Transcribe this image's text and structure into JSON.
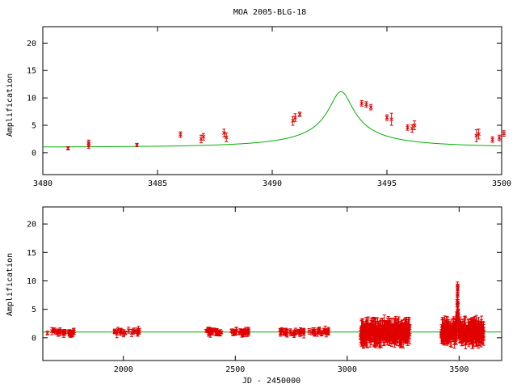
{
  "chart_data": [
    {
      "type": "scatter",
      "title": "MOA 2005-BLG-18",
      "xlabel": "",
      "ylabel": "Amplification",
      "xlim": [
        3480,
        3500
      ],
      "ylim": [
        -4,
        23
      ],
      "xticks": [
        3480,
        3485,
        3490,
        3495,
        3500
      ],
      "yticks": [
        0,
        5,
        10,
        15,
        20
      ],
      "model_color": "#00b000",
      "point_color": "#e00000",
      "model": {
        "t0": 3493.0,
        "u0": 0.09,
        "tE": 6.0
      },
      "series": [
        {
          "values": [
            [
              3481.1,
              0.8,
              0.3
            ],
            [
              3482.0,
              1.3,
              0.5
            ],
            [
              3482.0,
              1.8,
              0.5
            ],
            [
              3484.1,
              1.4,
              0.3
            ],
            [
              3486.0,
              3.3,
              0.5
            ],
            [
              3486.9,
              2.5,
              0.7
            ],
            [
              3487.0,
              2.9,
              0.6
            ],
            [
              3487.9,
              3.6,
              0.7
            ],
            [
              3488.0,
              2.8,
              0.8
            ],
            [
              3490.9,
              5.8,
              0.8
            ],
            [
              3491.0,
              6.4,
              0.7
            ],
            [
              3491.2,
              7.0,
              0.4
            ],
            [
              3493.9,
              9.0,
              0.5
            ],
            [
              3494.1,
              8.8,
              0.5
            ],
            [
              3494.3,
              8.3,
              0.5
            ],
            [
              3495.0,
              6.4,
              0.5
            ],
            [
              3495.2,
              6.1,
              1.1
            ],
            [
              3495.9,
              4.6,
              0.5
            ],
            [
              3496.1,
              4.4,
              0.7
            ],
            [
              3496.2,
              5.0,
              0.8
            ],
            [
              3498.9,
              3.1,
              1.1
            ],
            [
              3499.0,
              3.4,
              0.9
            ],
            [
              3499.6,
              2.4,
              0.5
            ],
            [
              3499.9,
              2.7,
              0.5
            ],
            [
              3500.1,
              3.5,
              0.5
            ]
          ]
        }
      ]
    },
    {
      "type": "scatter",
      "title": "",
      "xlabel": "JD - 2450000",
      "ylabel": "Amplification",
      "xlim": [
        1640,
        3690
      ],
      "ylim": [
        -4,
        23
      ],
      "xticks": [
        2000,
        2500,
        3000,
        3500
      ],
      "yticks": [
        0,
        5,
        10,
        15,
        20
      ],
      "model_color": "#00b000",
      "point_color": "#e00000",
      "model": {
        "t0": 3493.0,
        "u0": 0.09,
        "tE": 6.0
      },
      "observing_seasons": [
        [
          1660,
          1780,
          30
        ],
        [
          1960,
          2090,
          20
        ],
        [
          2360,
          2440,
          25
        ],
        [
          2480,
          2560,
          25
        ],
        [
          2700,
          2920,
          55
        ],
        [
          3060,
          3280,
          300
        ],
        [
          3420,
          3610,
          280
        ]
      ]
    }
  ]
}
